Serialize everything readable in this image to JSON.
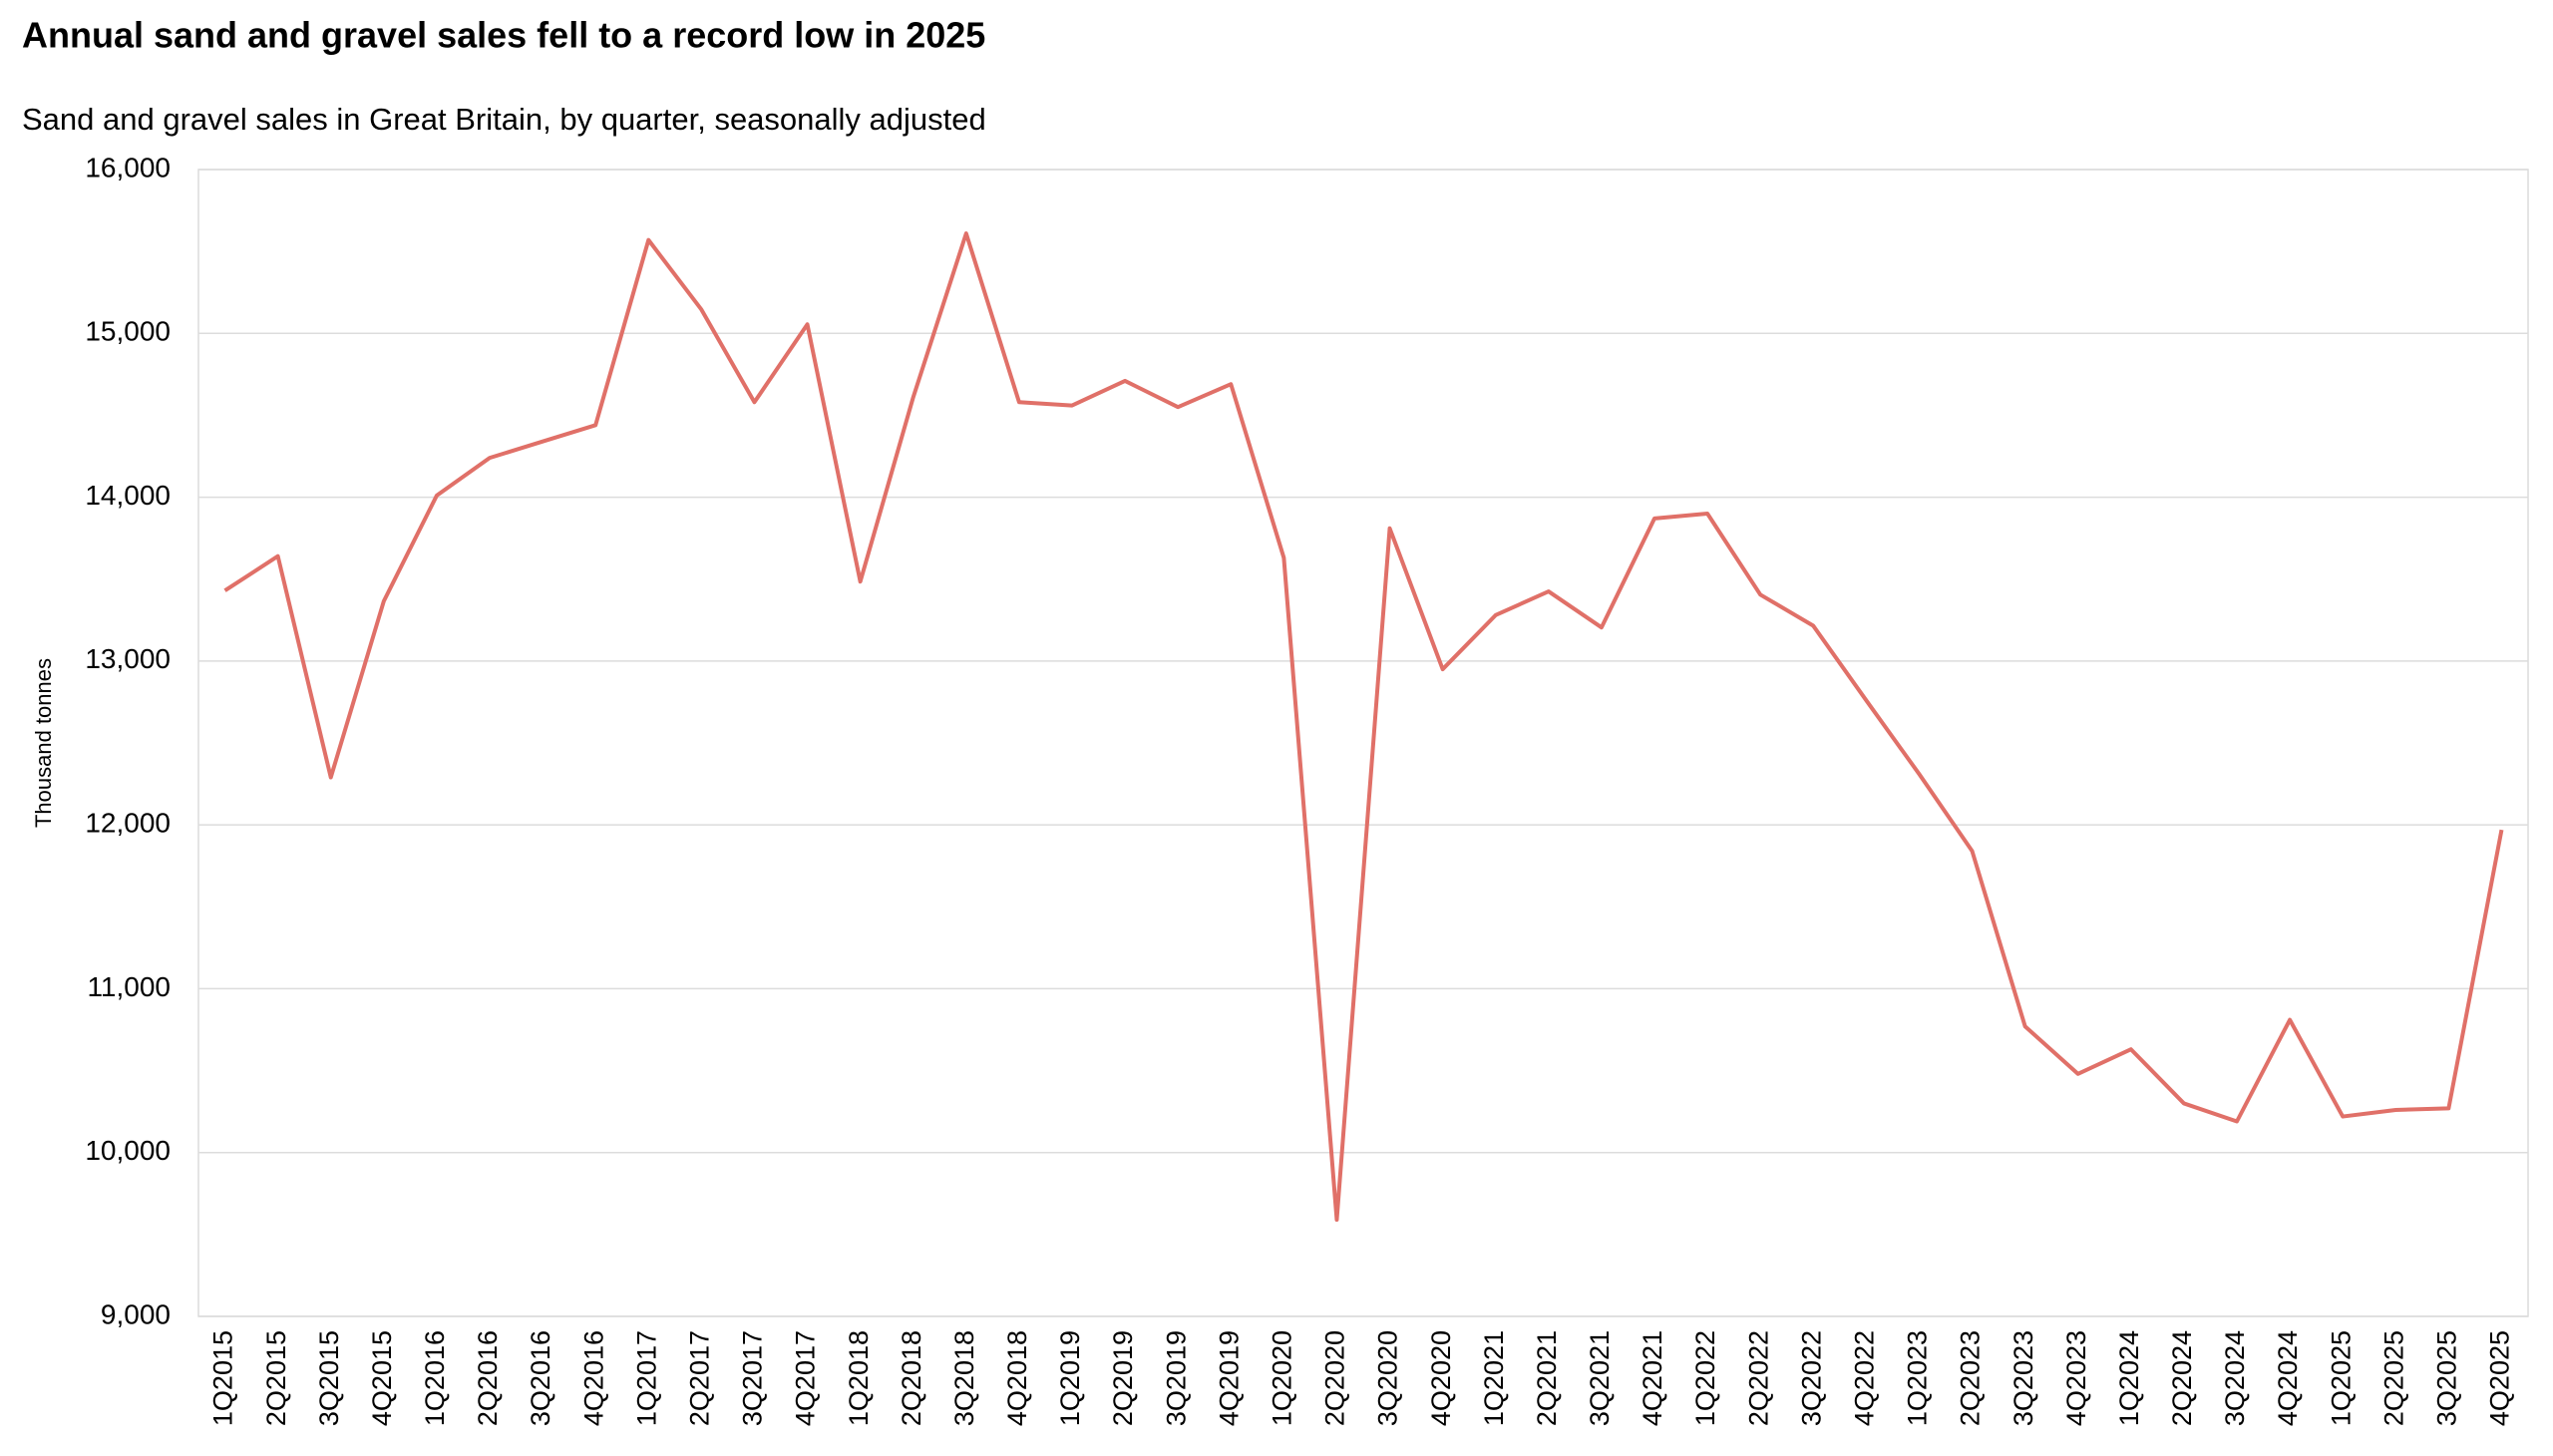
{
  "chart_data": {
    "type": "line",
    "title": "Annual sand and gravel sales fell to a record low in 2025",
    "subtitle": "Sand and gravel sales in Great Britain, by quarter, seasonally adjusted",
    "y_label": "Thousand tonnes",
    "categories": [
      "1Q2015",
      "2Q2015",
      "3Q2015",
      "4Q2015",
      "1Q2016",
      "2Q2016",
      "3Q2016",
      "4Q2016",
      "1Q2017",
      "2Q2017",
      "3Q2017",
      "4Q2017",
      "1Q2018",
      "2Q2018",
      "3Q2018",
      "4Q2018",
      "1Q2019",
      "2Q2019",
      "3Q2019",
      "4Q2019",
      "1Q2020",
      "2Q2020",
      "3Q2020",
      "4Q2020",
      "1Q2021",
      "2Q2021",
      "3Q2021",
      "4Q2021",
      "1Q2022",
      "2Q2022",
      "3Q2022",
      "4Q2022",
      "1Q2023",
      "2Q2023",
      "3Q2023",
      "4Q2023",
      "1Q2024",
      "2Q2024",
      "3Q2024",
      "4Q2024",
      "1Q2025",
      "2Q2025",
      "3Q2025",
      "4Q2025"
    ],
    "series": [
      {
        "name": "Sand and gravel sales",
        "color": "#e07068",
        "values": [
          13430,
          13640,
          12290,
          13365,
          14010,
          14240,
          14340,
          14440,
          15570,
          15145,
          14580,
          15055,
          13485,
          14610,
          15610,
          14580,
          14560,
          14710,
          14550,
          14690,
          13630,
          9590,
          13810,
          12950,
          13280,
          13425,
          13205,
          13870,
          13900,
          13405,
          13215,
          12760,
          12310,
          11840,
          10770,
          10480,
          10630,
          10300,
          10190,
          10810,
          10220,
          10260,
          10270,
          11970
        ]
      }
    ],
    "ylim": [
      9000,
      16000
    ],
    "yticks": [
      {
        "value": 9000,
        "label": "9,000"
      },
      {
        "value": 10000,
        "label": "10,000"
      },
      {
        "value": 11000,
        "label": "11,000"
      },
      {
        "value": 12000,
        "label": "12,000"
      },
      {
        "value": 13000,
        "label": "13,000"
      },
      {
        "value": 14000,
        "label": "14,000"
      },
      {
        "value": 15000,
        "label": "15,000"
      },
      {
        "value": 16000,
        "label": "16,000"
      }
    ],
    "grid": true
  }
}
